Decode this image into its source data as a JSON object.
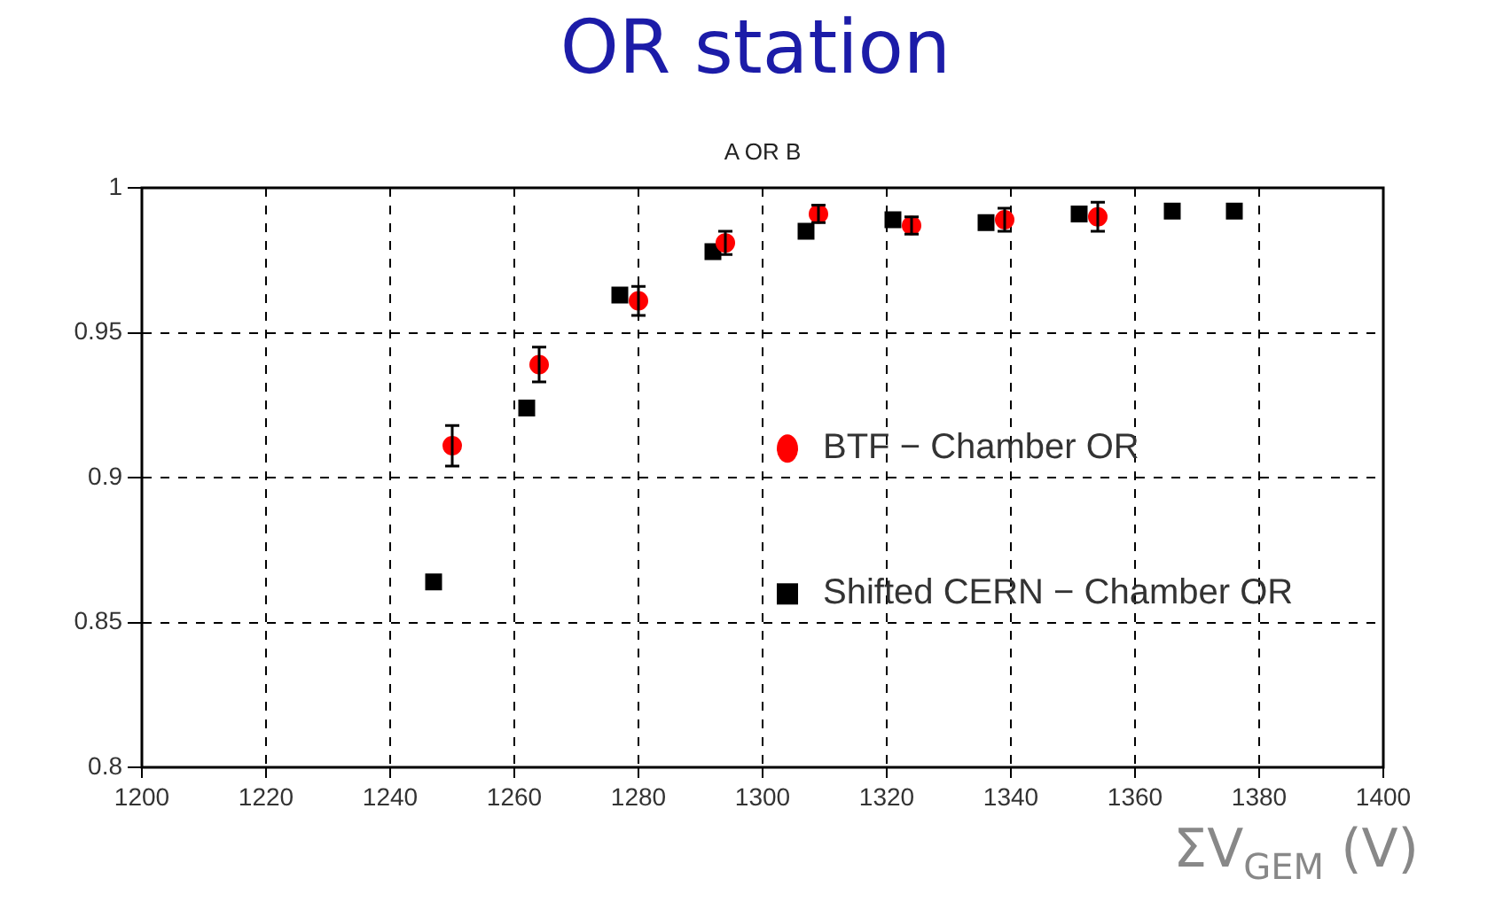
{
  "chart_data": {
    "type": "scatter",
    "title": "OR station",
    "subtitle": "A OR B",
    "xlabel": "ΣV$_{GEM}$ (V)",
    "xlim": [
      1200,
      1400
    ],
    "xticks": [
      1200,
      1220,
      1240,
      1260,
      1280,
      1300,
      1320,
      1340,
      1360,
      1380,
      1400
    ],
    "ylim": [
      0.8,
      1
    ],
    "yticks": [
      0.8,
      0.85,
      0.9,
      0.95,
      1
    ],
    "grid": true,
    "legend": "right",
    "series": [
      {
        "name": "BTF − Chamber OR",
        "color": "#ff0000",
        "marker": "circle",
        "x": [
          1250,
          1264,
          1280,
          1294,
          1309,
          1324,
          1339,
          1354
        ],
        "values": [
          0.911,
          0.939,
          0.961,
          0.981,
          0.991,
          0.987,
          0.989,
          0.99
        ],
        "errors": [
          0.007,
          0.006,
          0.005,
          0.004,
          0.003,
          0.003,
          0.004,
          0.005
        ]
      },
      {
        "name": "Shifted CERN − Chamber OR",
        "color": "#000000",
        "marker": "square",
        "x": [
          1247,
          1262,
          1277,
          1292,
          1307,
          1321,
          1336,
          1351,
          1366,
          1376
        ],
        "values": [
          0.864,
          0.924,
          0.963,
          0.978,
          0.985,
          0.989,
          0.988,
          0.991,
          0.992,
          0.992
        ]
      }
    ]
  }
}
